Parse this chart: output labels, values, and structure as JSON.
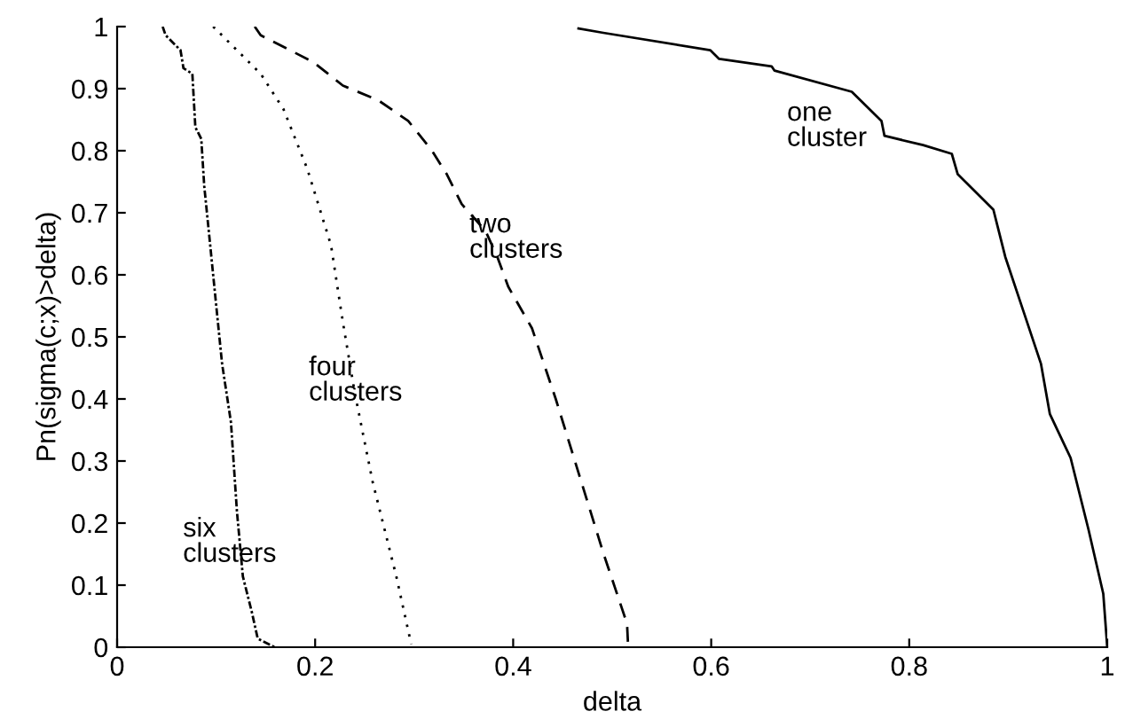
{
  "chart_data": {
    "type": "line",
    "xlabel": "delta",
    "ylabel": "Pn(sigma(c;x)>delta)",
    "xlim": [
      0,
      1
    ],
    "ylim": [
      0,
      1
    ],
    "xticks": [
      0,
      0.2,
      0.4,
      0.6,
      0.8,
      1
    ],
    "yticks": [
      0,
      0.1,
      0.2,
      0.3,
      0.4,
      0.5,
      0.6,
      0.7,
      0.8,
      0.9,
      1
    ],
    "grid": false,
    "marker": "none",
    "series": [
      {
        "name": "one\ncluster",
        "color": "#000000",
        "line_style": "solid",
        "x": [
          0.466,
          0.491,
          0.599,
          0.608,
          0.661,
          0.664,
          0.742,
          0.772,
          0.775,
          0.814,
          0.843,
          0.849,
          0.885,
          0.897,
          0.915,
          0.933,
          0.942,
          0.963,
          0.981,
          0.996,
          1.0
        ],
        "values": [
          0.997,
          0.99,
          0.962,
          0.948,
          0.936,
          0.929,
          0.895,
          0.848,
          0.824,
          0.809,
          0.795,
          0.762,
          0.705,
          0.629,
          0.543,
          0.457,
          0.376,
          0.305,
          0.19,
          0.086,
          0.0
        ]
      },
      {
        "name": "two\nclusters",
        "color": "#000000",
        "line_style": "dashed",
        "x": [
          0.139,
          0.145,
          0.198,
          0.228,
          0.264,
          0.294,
          0.318,
          0.333,
          0.348,
          0.372,
          0.384,
          0.395,
          0.419,
          0.443,
          0.467,
          0.491,
          0.515,
          0.516
        ],
        "values": [
          1.0,
          0.986,
          0.943,
          0.905,
          0.881,
          0.848,
          0.8,
          0.762,
          0.714,
          0.671,
          0.629,
          0.581,
          0.514,
          0.4,
          0.276,
          0.152,
          0.038,
          0.005
        ]
      },
      {
        "name": "four\nclusters",
        "color": "#000000",
        "line_style": "dotted",
        "x": [
          0.097,
          0.145,
          0.168,
          0.192,
          0.216,
          0.228,
          0.24,
          0.258,
          0.282,
          0.297
        ],
        "values": [
          1.0,
          0.924,
          0.867,
          0.771,
          0.648,
          0.524,
          0.41,
          0.267,
          0.114,
          0.005
        ]
      },
      {
        "name": "six\nclusters",
        "color": "#000000",
        "line_style": "dashdot",
        "x": [
          0.046,
          0.049,
          0.064,
          0.067,
          0.076,
          0.079,
          0.085,
          0.088,
          0.094,
          0.1,
          0.106,
          0.115,
          0.121,
          0.127,
          0.136,
          0.142,
          0.159
        ],
        "values": [
          1.0,
          0.986,
          0.962,
          0.933,
          0.924,
          0.838,
          0.819,
          0.743,
          0.648,
          0.552,
          0.457,
          0.362,
          0.219,
          0.114,
          0.057,
          0.014,
          0.0
        ]
      }
    ]
  }
}
